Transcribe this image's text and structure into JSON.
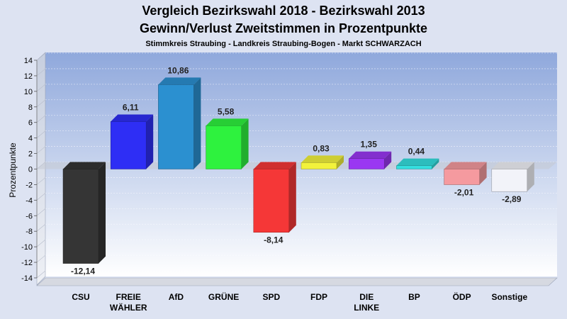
{
  "chart_data": {
    "type": "bar",
    "title": "Vergleich Bezirkswahl 2018 - Bezirkswahl 2013",
    "title2": "Gewinn/Verlust Zweitstimmen in Prozentpunkte",
    "subtitle": "Stimmkreis Straubing - Landkreis Straubing-Bogen - Markt SCHWARZACH",
    "ylabel": "Prozentpunkte",
    "ylim": [
      -14,
      14
    ],
    "yticks": [
      "14",
      "12",
      "10",
      "8",
      "6",
      "4",
      "2",
      "0",
      "-2",
      "-4",
      "-6",
      "-8",
      "-10",
      "-12",
      "-14"
    ],
    "grid": true,
    "categories": [
      [
        "CSU"
      ],
      [
        "FREIE",
        "WÄHLER"
      ],
      [
        "AfD"
      ],
      [
        "GRÜNE"
      ],
      [
        "SPD"
      ],
      [
        "FDP"
      ],
      [
        "DIE",
        "LINKE"
      ],
      [
        "BP"
      ],
      [
        "ÖDP"
      ],
      [
        "Sonstige"
      ]
    ],
    "values": [
      -12.14,
      6.11,
      10.86,
      5.58,
      -8.14,
      0.83,
      1.35,
      0.44,
      -2.01,
      -2.89
    ],
    "value_labels": [
      "-12,14",
      "6,11",
      "10,86",
      "5,58",
      "-8,14",
      "0,83",
      "1,35",
      "0,44",
      "-2,01",
      "-2,89"
    ],
    "colors": [
      "#353535",
      "#2e2ef5",
      "#2b90d0",
      "#2ef23e",
      "#f53737",
      "#f2f23c",
      "#9a37f2",
      "#34dede",
      "#f59a9f",
      "#f2f3f9"
    ]
  }
}
